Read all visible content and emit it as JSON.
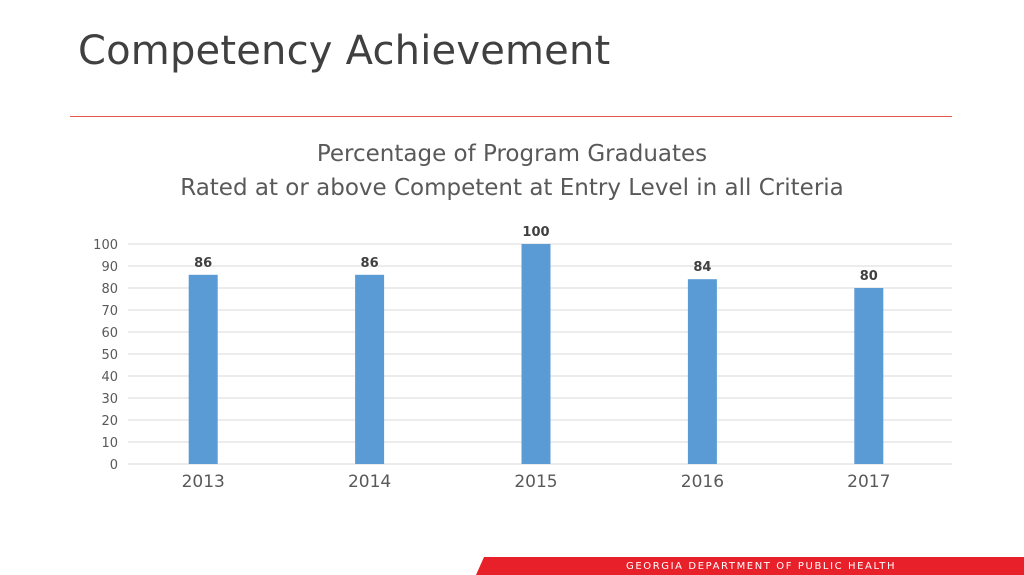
{
  "slide": {
    "title": "Competency Achievement",
    "footer": "GEORGIA DEPARTMENT OF PUBLIC HEALTH"
  },
  "colors": {
    "bar": "#5b9bd5",
    "accent": "#e8202a",
    "rule": "#e8554e",
    "grid": "#d9d9d9"
  },
  "chart_data": {
    "type": "bar",
    "title": [
      "Percentage of Program Graduates",
      "Rated at or above Competent at Entry Level in all Criteria"
    ],
    "categories": [
      "2013",
      "2014",
      "2015",
      "2016",
      "2017"
    ],
    "values": [
      86,
      86,
      100,
      84,
      80
    ],
    "data_labels": [
      "86",
      "86",
      "100",
      "84",
      "80"
    ],
    "ylim": [
      0,
      100
    ],
    "yticks": [
      0,
      10,
      20,
      30,
      40,
      50,
      60,
      70,
      80,
      90,
      100
    ],
    "grid": true,
    "legend": false
  }
}
